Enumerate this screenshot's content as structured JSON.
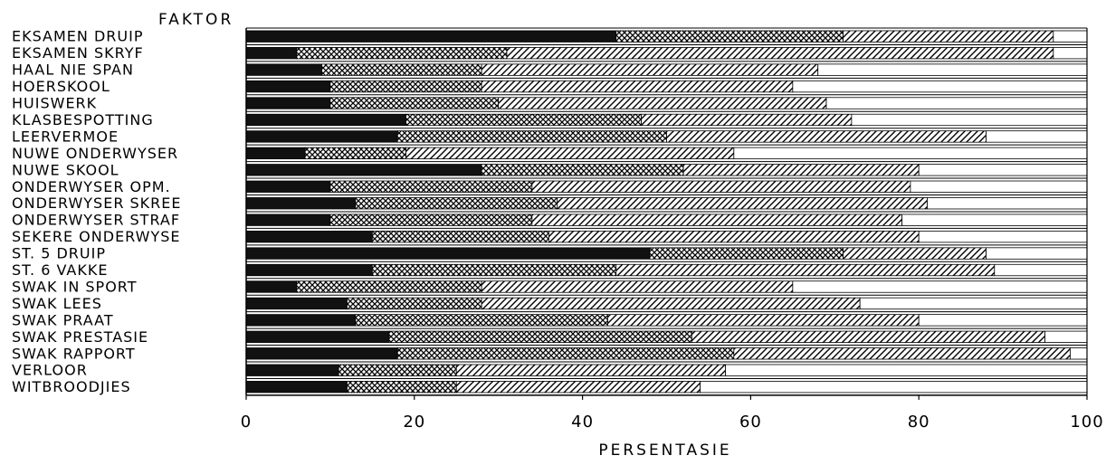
{
  "chart_data": {
    "type": "bar",
    "orientation": "horizontal",
    "stacked": true,
    "category_axis_label": "FAKTOR",
    "xlabel": "PERSENTASIE",
    "xlim": [
      0,
      100
    ],
    "xticks": [
      "0",
      "20",
      "40",
      "60",
      "80",
      "100"
    ],
    "grid": false,
    "legend": "none",
    "categories": [
      "EKSAMEN DRUIP",
      "EKSAMEN SKRYF",
      "HAAL NIE SPAN",
      "HOERSKOOL",
      "HUISWERK",
      "KLASBESPOTTING",
      "LEERVERMOE",
      "NUWE ONDERWYSER",
      "NUWE SKOOL",
      "ONDERWYSER OPM.",
      "ONDERWYSER SKREE",
      "ONDERWYSER STRAF",
      "SEKERE ONDERWYSE",
      "ST. 5   DRUIP",
      "ST. 6   VAKKE",
      "SWAK IN SPORT",
      "SWAK LEES",
      "SWAK PRAAT",
      "SWAK PRESTASIE",
      "SWAK RAPPORT",
      "VERLOOR",
      "WITBROODJIES"
    ],
    "series": [
      {
        "pattern": "solid",
        "color": "#111111",
        "values": [
          44,
          6,
          9,
          10,
          10,
          19,
          18,
          7,
          28,
          10,
          13,
          10,
          15,
          48,
          15,
          6,
          12,
          13,
          17,
          18,
          11,
          12
        ]
      },
      {
        "pattern": "crosshatch",
        "color": "#9a9a9a",
        "values": [
          27,
          25,
          19,
          18,
          20,
          28,
          32,
          12,
          24,
          24,
          24,
          24,
          21,
          23,
          29,
          22,
          16,
          30,
          36,
          40,
          14,
          13
        ]
      },
      {
        "pattern": "diagonal",
        "color": "#555555",
        "values": [
          25,
          65,
          40,
          37,
          39,
          25,
          38,
          39,
          28,
          45,
          44,
          44,
          44,
          17,
          45,
          37,
          45,
          37,
          42,
          40,
          32,
          29
        ]
      },
      {
        "pattern": "empty",
        "color": "#ffffff",
        "values": [
          4,
          4,
          32,
          35,
          31,
          28,
          12,
          42,
          20,
          21,
          19,
          22,
          20,
          12,
          11,
          35,
          27,
          20,
          5,
          2,
          43,
          46
        ]
      }
    ]
  }
}
